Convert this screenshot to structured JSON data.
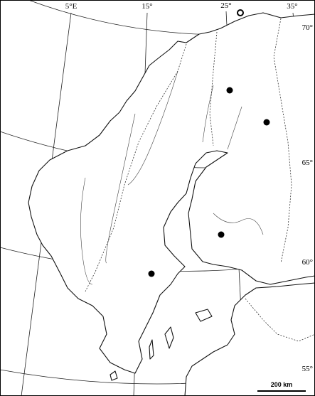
{
  "map": {
    "longitude_labels": [
      "5°E",
      "15°",
      "25°",
      "35°"
    ],
    "latitude_labels": [
      "70°",
      "65°",
      "60°",
      "55°"
    ],
    "scale_bar": "200 km"
  }
}
